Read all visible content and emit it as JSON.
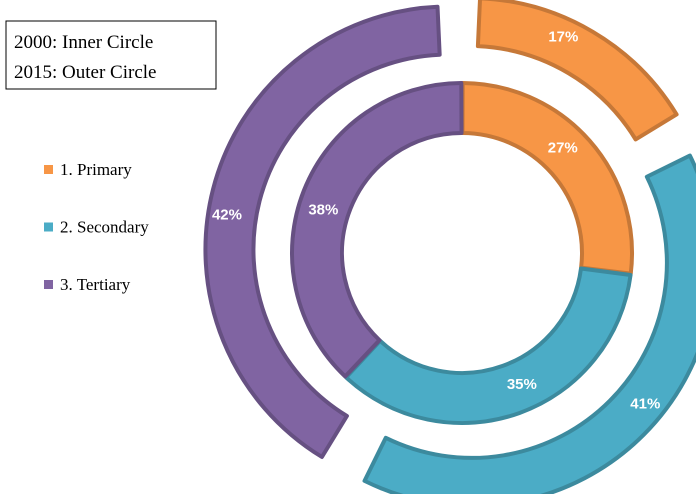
{
  "chart_data": {
    "type": "donut",
    "categories": [
      "1. Primary",
      "2. Secondary",
      "3. Tertiary"
    ],
    "colors": [
      "#f79646",
      "#4bacc6",
      "#8064a2"
    ],
    "series": [
      {
        "name": "2000: Inner Circle",
        "values": [
          27,
          35,
          38
        ],
        "value_labels": [
          "27%",
          "35%",
          "38%"
        ]
      },
      {
        "name": "2015: Outer Circle",
        "values": [
          17,
          41,
          42
        ],
        "value_labels": [
          "17%",
          "41%",
          "42%"
        ]
      }
    ],
    "legend": "left"
  }
}
